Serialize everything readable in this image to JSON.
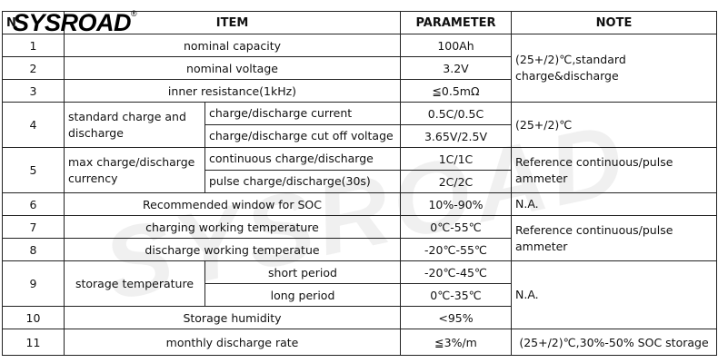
{
  "logo": {
    "text": "SYSROAD",
    "mark": "®"
  },
  "watermark": "SYSROAD",
  "header": [
    "N",
    "ITEM",
    "PARAMETER",
    "NOTE"
  ],
  "rows": [
    {
      "no": "1",
      "item": "nominal capacity",
      "parameter": "100Ah",
      "note": "(25+/2)℃,standard charge&discharge"
    },
    {
      "no": "2",
      "item": "nominal voltage",
      "parameter": "3.2V"
    },
    {
      "no": "3",
      "item": "inner resistance(1kHz)",
      "parameter": "≦0.5mΩ"
    },
    {
      "no": "4",
      "item": "standard charge and discharge",
      "sub": [
        "charge/discharge current",
        "charge/discharge cut off voltage"
      ],
      "parameters": [
        "0.5C/0.5C",
        "3.65V/2.5V"
      ],
      "note": "(25+/2)℃"
    },
    {
      "no": "5",
      "item": "max charge/discharge currency",
      "sub": [
        "continuous charge/discharge",
        "pulse charge/discharge(30s)"
      ],
      "parameters": [
        "1C/1C",
        "2C/2C"
      ],
      "note": "Reference continuous/pulse ammeter"
    },
    {
      "no": "6",
      "item": "Recommended window for SOC",
      "parameter": "10%-90%",
      "note": "N.A."
    },
    {
      "no": "7",
      "item": "charging working temperature",
      "parameter": "0℃-55℃",
      "note": "Reference continuous/pulse ammeter"
    },
    {
      "no": "8",
      "item": "discharge working temperatue",
      "parameter": "-20℃-55℃"
    },
    {
      "no": "9",
      "item": "storage temperature",
      "sub": [
        "short period",
        "long period"
      ],
      "parameters": [
        "-20℃-45℃",
        "0℃-35℃"
      ],
      "note": "N.A."
    },
    {
      "no": "10",
      "item": "Storage humidity",
      "parameter": "<95%"
    },
    {
      "no": "11",
      "item": "monthly discharge rate",
      "parameter": "≦3%/m",
      "note": "(25+/2)℃,30%-50% SOC storage"
    }
  ]
}
